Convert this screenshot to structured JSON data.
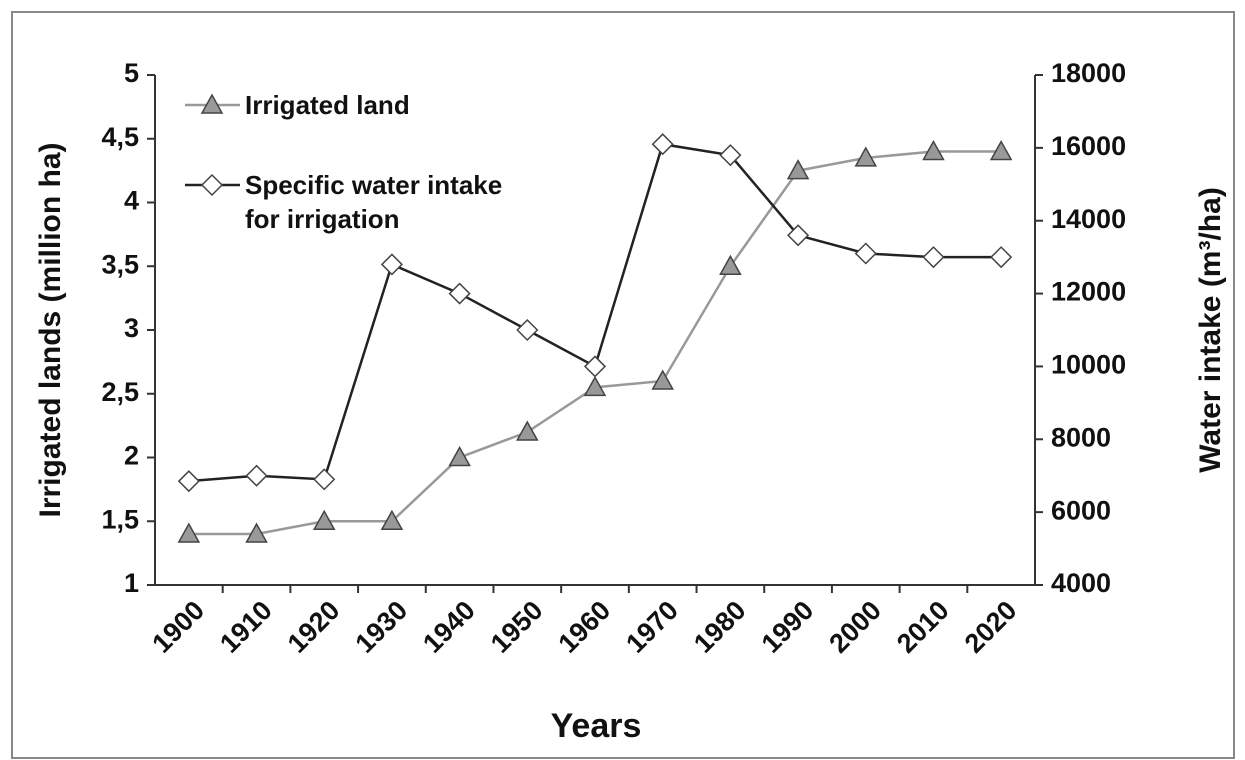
{
  "chart_data": {
    "type": "line",
    "x_label": "Years",
    "y_label": "Irrigated lands (million ha)",
    "y2_label": "Water intake (m³/ha)",
    "categories": [
      "1900",
      "1910",
      "1920",
      "1930",
      "1940",
      "1950",
      "1960",
      "1970",
      "1980",
      "1990",
      "2000",
      "2010",
      "2020"
    ],
    "series": [
      {
        "name": "Irrigated land",
        "color": "#999999",
        "axis": "y",
        "marker": "triangle",
        "values": [
          1.4,
          1.4,
          1.5,
          1.5,
          2.0,
          2.2,
          2.55,
          2.6,
          3.5,
          4.25,
          4.35,
          4.4,
          4.4
        ]
      },
      {
        "name": "Specific water intake for irrigation",
        "color": "#222222",
        "axis": "y2",
        "marker": "diamond",
        "values": [
          6850,
          7000,
          6900,
          12800,
          12000,
          11000,
          10000,
          16100,
          15800,
          13600,
          13100,
          13000,
          13000
        ]
      }
    ],
    "ylim": [
      1,
      5
    ],
    "yticks": [
      1,
      {
        "value": 1.5,
        "label": "1,5"
      },
      2,
      {
        "value": 2.5,
        "label": "2,5"
      },
      3,
      {
        "value": 3.5,
        "label": "3,5"
      },
      4,
      {
        "value": 4.5,
        "label": "4,5"
      },
      5
    ],
    "y2lim": [
      4000,
      18000
    ],
    "y2ticks": [
      4000,
      6000,
      8000,
      10000,
      12000,
      14000,
      16000,
      18000
    ],
    "grid": false,
    "legend": "upper left"
  }
}
